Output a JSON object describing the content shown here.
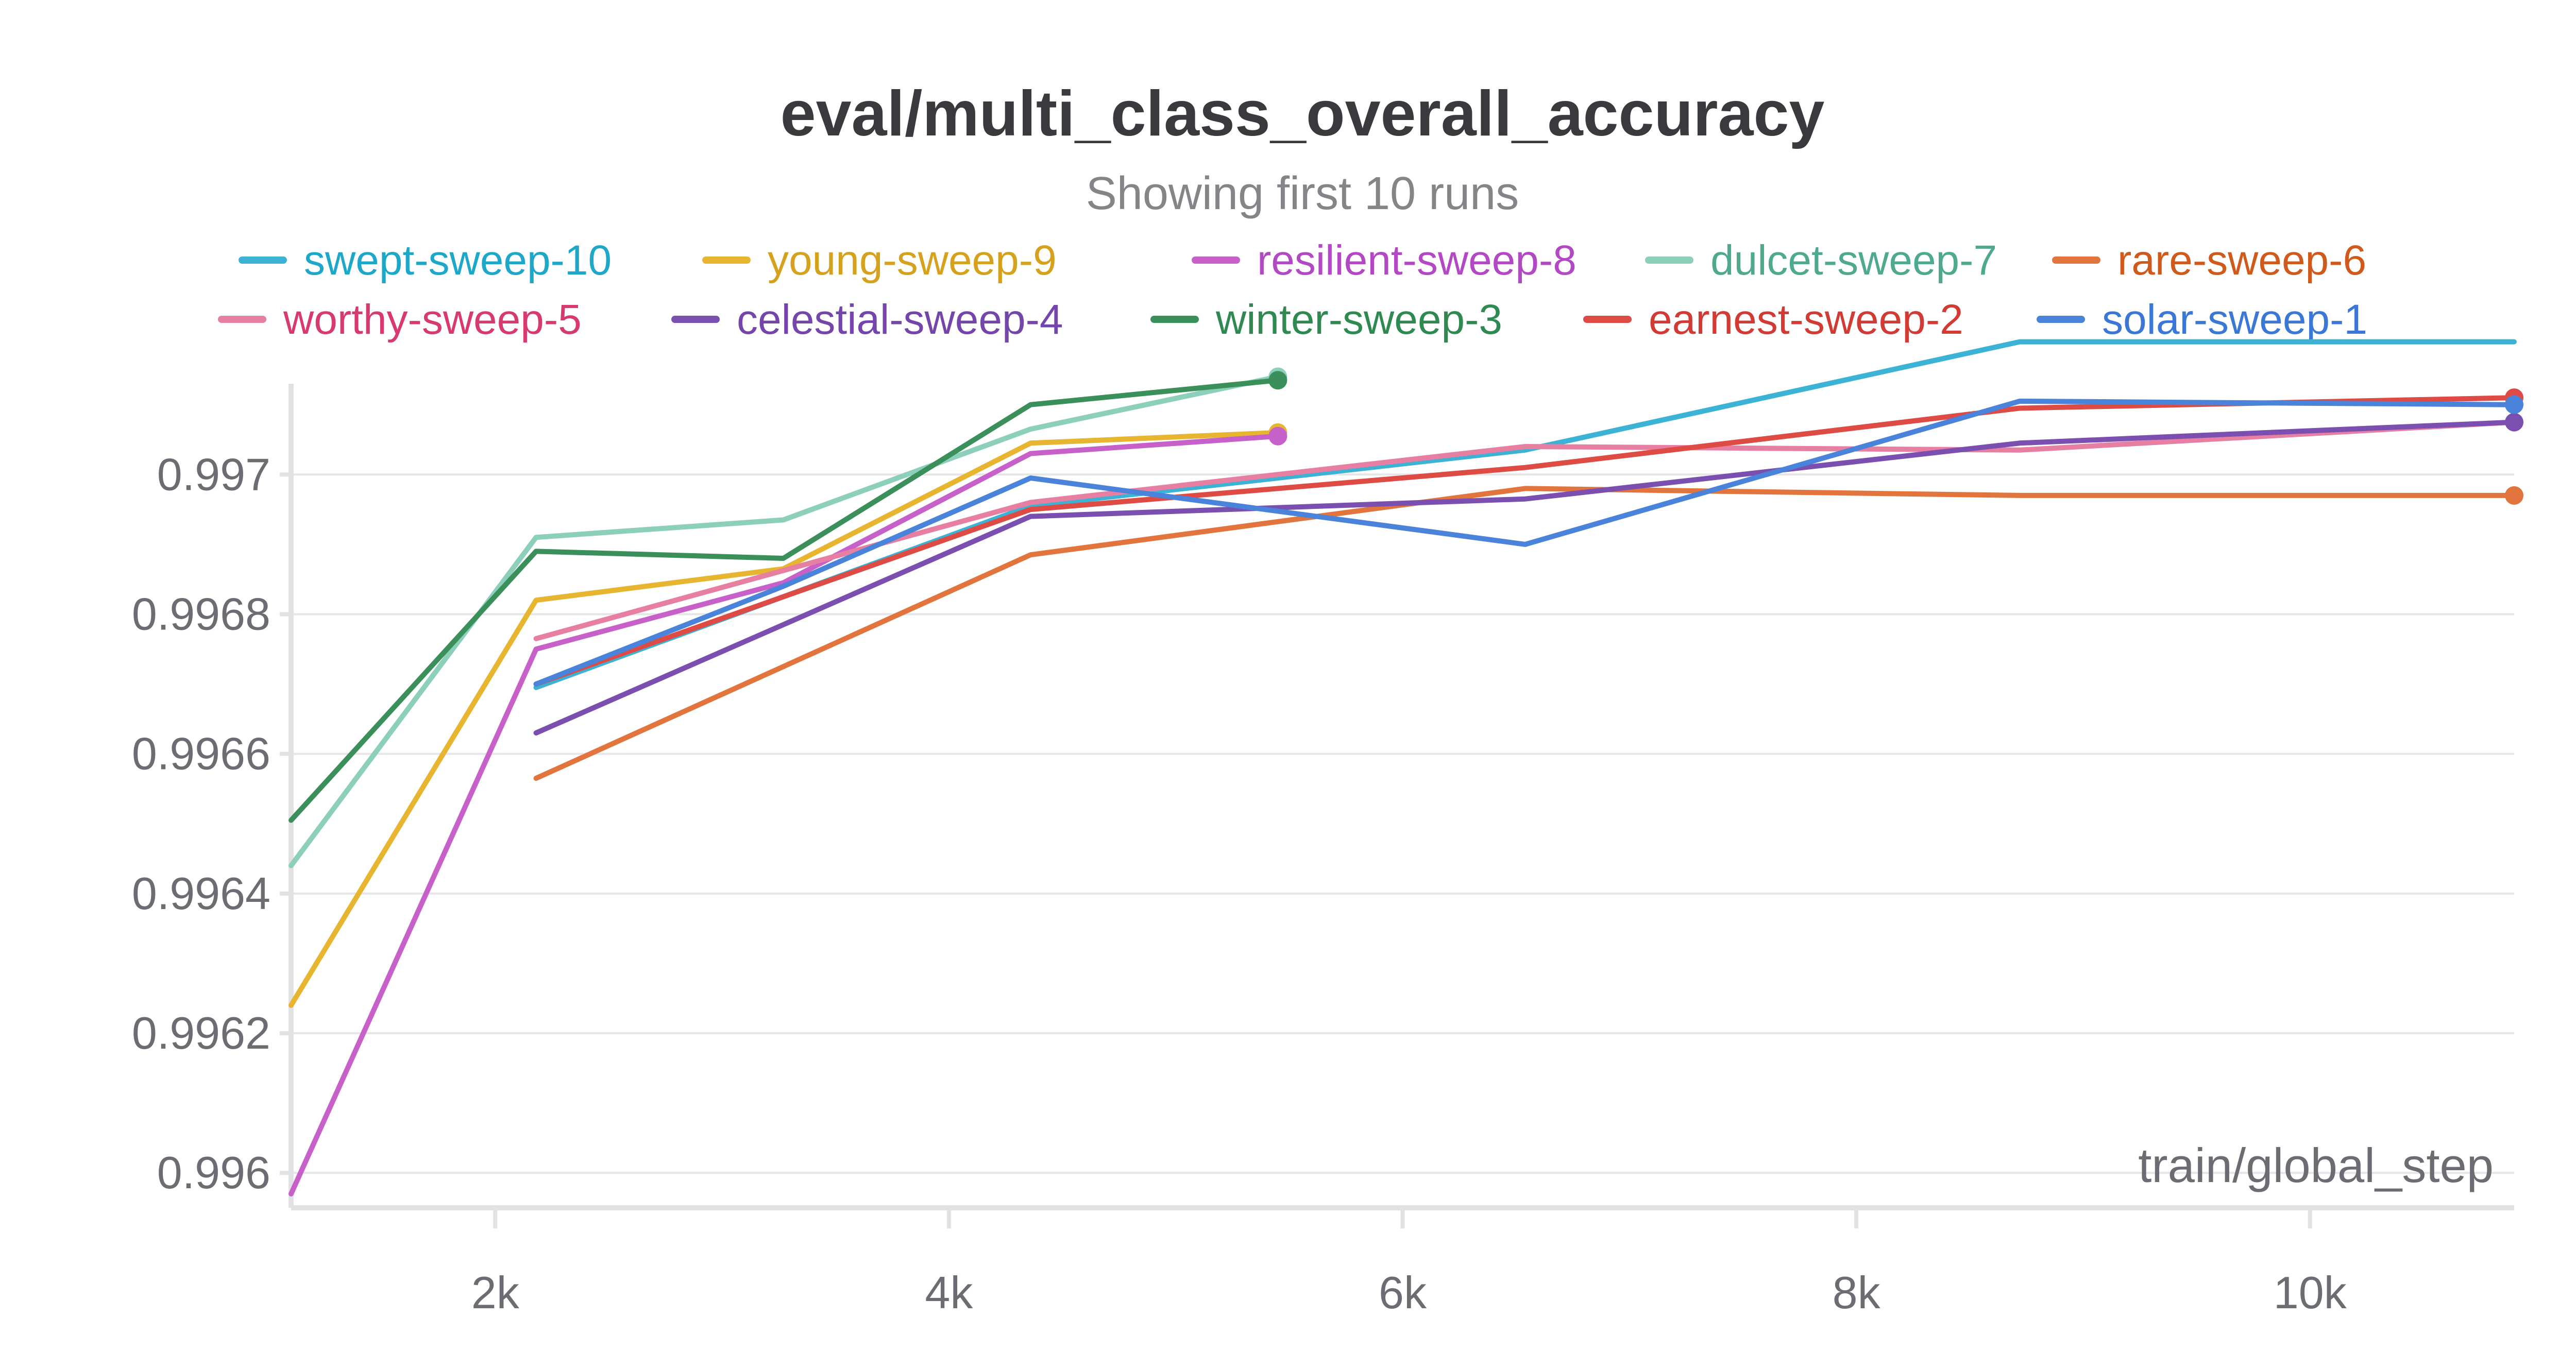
{
  "chart_data": {
    "type": "line",
    "title": "eval/multi_class_overall_accuracy",
    "subtitle": "Showing first 10 runs",
    "xlabel": "train/global_step",
    "ylabel": "",
    "xlim": [
      1100,
      10900
    ],
    "ylim": [
      0.99595,
      0.99713
    ],
    "x_ticks": [
      2000,
      4000,
      6000,
      8000,
      10000
    ],
    "x_tick_labels": [
      "2k",
      "4k",
      "6k",
      "8k",
      "10k"
    ],
    "y_ticks": [
      0.996,
      0.9962,
      0.9964,
      0.9966,
      0.9968,
      0.997
    ],
    "y_tick_labels": [
      "0.996",
      "0.9962",
      "0.9964",
      "0.9966",
      "0.9968",
      "0.997"
    ],
    "grid": true,
    "legend_position": "top",
    "series": [
      {
        "name": "swept-sweep-10",
        "color": "#3cb3d4",
        "label_color": "#1da7c9",
        "x": [
          2180,
          4360,
          6540,
          8720,
          10900
        ],
        "y": [
          0.996695,
          0.996955,
          0.997035,
          0.99719,
          0.99719
        ],
        "end_marker": false
      },
      {
        "name": "young-sweep-9",
        "color": "#e8b531",
        "label_color": "#d6a11c",
        "x": [
          1100,
          2180,
          3270,
          4360,
          5450
        ],
        "y": [
          0.99624,
          0.99682,
          0.996865,
          0.997045,
          0.99706
        ],
        "end_marker": true
      },
      {
        "name": "resilient-sweep-8",
        "color": "#c760c9",
        "label_color": "#b348c4",
        "x": [
          1100,
          2180,
          3270,
          4360,
          5450
        ],
        "y": [
          0.99597,
          0.99675,
          0.996845,
          0.99703,
          0.997055
        ],
        "end_marker": true
      },
      {
        "name": "dulcet-sweep-7",
        "color": "#8ccfbb",
        "label_color": "#4ea98f",
        "x": [
          1100,
          2180,
          3270,
          4360,
          5450
        ],
        "y": [
          0.99644,
          0.99691,
          0.996935,
          0.997065,
          0.99714
        ],
        "end_marker": true
      },
      {
        "name": "rare-sweep-6",
        "color": "#e2753d",
        "label_color": "#cf5a1c",
        "x": [
          2180,
          4360,
          6540,
          8720,
          10900
        ],
        "y": [
          0.996565,
          0.996885,
          0.99698,
          0.99697,
          0.99697
        ],
        "end_marker": true
      },
      {
        "name": "worthy-sweep-5",
        "color": "#e77fa2",
        "label_color": "#d83a6e",
        "x": [
          2180,
          4360,
          6540,
          8720,
          10900
        ],
        "y": [
          0.996765,
          0.99696,
          0.99704,
          0.997035,
          0.997075
        ],
        "end_marker": false
      },
      {
        "name": "celestial-sweep-4",
        "color": "#7b4fb0",
        "label_color": "#7446ab",
        "x": [
          2180,
          4360,
          6540,
          8720,
          10900
        ],
        "y": [
          0.99663,
          0.99694,
          0.996965,
          0.997045,
          0.997075
        ],
        "end_marker": true
      },
      {
        "name": "winter-sweep-3",
        "color": "#3a8f5a",
        "label_color": "#2f8a52",
        "x": [
          1100,
          2180,
          3270,
          4360,
          5450
        ],
        "y": [
          0.996505,
          0.99689,
          0.99688,
          0.9971,
          0.997135
        ],
        "end_marker": true
      },
      {
        "name": "earnest-sweep-2",
        "color": "#de4b45",
        "label_color": "#d23a34",
        "x": [
          2180,
          4360,
          6540,
          8720,
          10900
        ],
        "y": [
          0.9967,
          0.99695,
          0.99701,
          0.997095,
          0.99711
        ],
        "end_marker": true
      },
      {
        "name": "solar-sweep-1",
        "color": "#4a83da",
        "label_color": "#3a77d6",
        "x": [
          2180,
          3270,
          4360,
          6540,
          8720,
          10900
        ],
        "y": [
          0.9967,
          0.99684,
          0.996995,
          0.9969,
          0.997105,
          0.9971
        ],
        "end_marker": true
      }
    ]
  }
}
